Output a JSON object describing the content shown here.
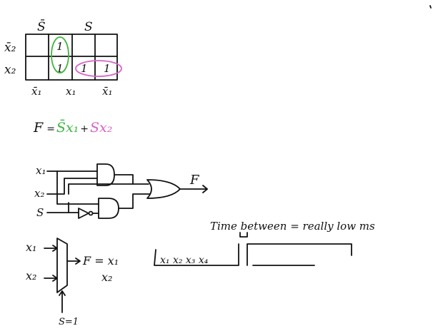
{
  "kmap": {
    "col_header_left": "S̄",
    "col_header_right": "S",
    "row_labels": [
      "x̄₂",
      "x₂"
    ],
    "col_labels": [
      "x̄₁",
      "x₁",
      "x̄₁"
    ],
    "cells": [
      [
        "",
        "1",
        "",
        ""
      ],
      [
        "",
        "1",
        "1",
        "1"
      ]
    ]
  },
  "equation": {
    "lhs": "F",
    "eq": "=",
    "term1": "S̄x₁",
    "plus": "+",
    "term2": "Sx₂"
  },
  "colors": {
    "green": "#3fb53f",
    "pink": "#d862c8",
    "ink": "#111111"
  },
  "gate_circuit": {
    "inputs": [
      "x₁",
      "x₂",
      "S"
    ],
    "output": "F"
  },
  "mux": {
    "inputs": [
      "x₁",
      "x₂"
    ],
    "select": "S=1",
    "output_expr": "F = x₁",
    "output_expr_2": "x₂"
  },
  "timing": {
    "note": "Time between = really low ms",
    "frame": "x₁ x₂ x₃ x₄"
  }
}
